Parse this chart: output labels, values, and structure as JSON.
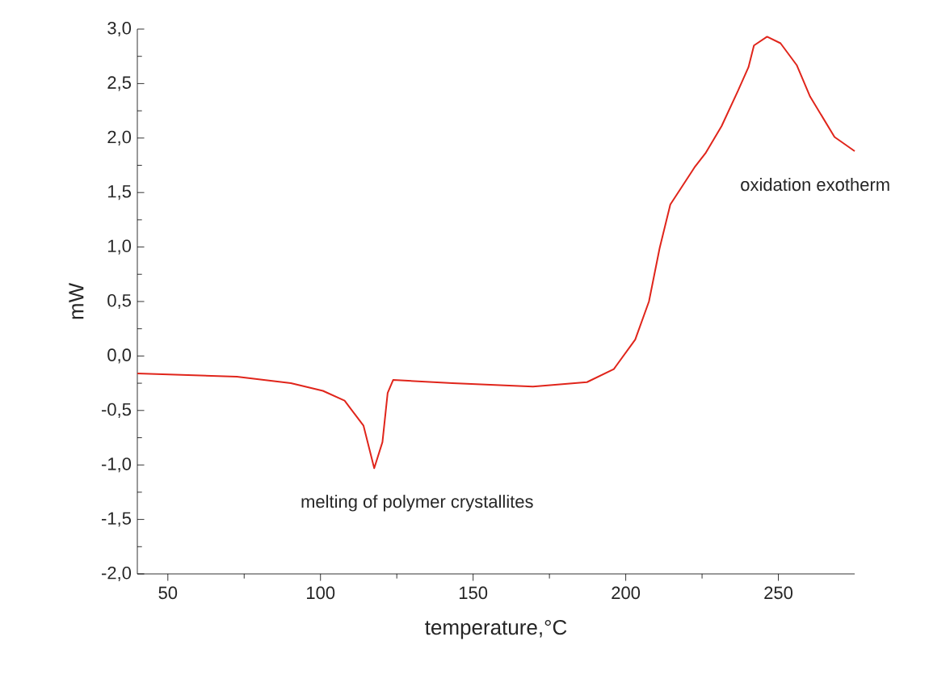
{
  "chart_data": {
    "type": "line",
    "xlabel": "temperature,°C",
    "ylabel": "mW",
    "xlim": [
      40,
      275
    ],
    "ylim": [
      -2,
      3
    ],
    "xticks": [
      50,
      100,
      150,
      200,
      250
    ],
    "yticks": [
      {
        "value": -2,
        "label": "-2,0"
      },
      {
        "value": -1.5,
        "label": "-1,5"
      },
      {
        "value": -1,
        "label": "-1,0"
      },
      {
        "value": -0.5,
        "label": "-0,5"
      },
      {
        "value": 0,
        "label": "0,0"
      },
      {
        "value": 0.5,
        "label": "0,5"
      },
      {
        "value": 1,
        "label": "1,0"
      },
      {
        "value": 1.5,
        "label": "1,5"
      },
      {
        "value": 2,
        "label": "2,0"
      },
      {
        "value": 2.5,
        "label": "2,5"
      },
      {
        "value": 3,
        "label": "3,0"
      }
    ],
    "grid": false,
    "marker": "none",
    "line_style": "solid",
    "series": [
      {
        "color": "#e0251b",
        "x": [
          40,
          72.6,
          90.3,
          100.8,
          107.9,
          111.4,
          114.1,
          117.6,
          120.3,
          122,
          123.8,
          143.2,
          169.6,
          187.3,
          196.1,
          203.1,
          207.6,
          211.1,
          214.6,
          218.1,
          222.5,
          226.1,
          231.4,
          236.7,
          240.2,
          242,
          246.3,
          250.7,
          256,
          260.4,
          268.4,
          275
        ],
        "values": [
          -0.16,
          -0.19,
          -0.25,
          -0.32,
          -0.41,
          -0.54,
          -0.64,
          -1.03,
          -0.79,
          -0.34,
          -0.22,
          -0.25,
          -0.28,
          -0.24,
          -0.12,
          0.15,
          0.5,
          0.99,
          1.39,
          1.54,
          1.73,
          1.86,
          2.11,
          2.43,
          2.65,
          2.85,
          2.93,
          2.87,
          2.67,
          2.38,
          2.01,
          1.88
        ]
      }
    ],
    "annotations": [
      "melting of polymer crystallites",
      "oxidation exotherm"
    ]
  }
}
